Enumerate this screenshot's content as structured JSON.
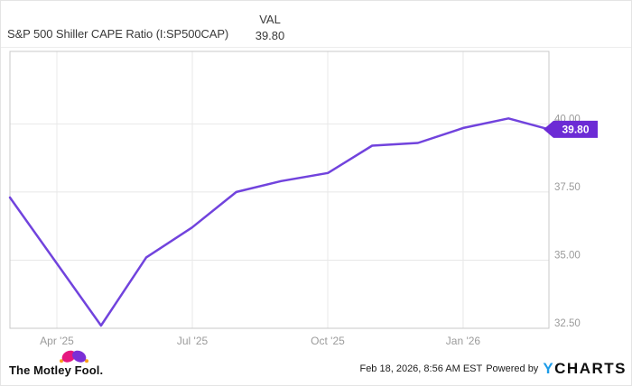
{
  "header": {
    "title": "S&P 500 Shiller CAPE Ratio (I:SP500CAP)",
    "val_label": "VAL",
    "val_value": "39.80"
  },
  "chart_data": {
    "type": "line",
    "title": "S&P 500 Shiller CAPE Ratio (I:SP500CAP)",
    "series": [
      {
        "name": "S&P 500 Shiller CAPE Ratio",
        "color": "#7143dd",
        "points": [
          {
            "date": "Mar '25",
            "value": 37.3,
            "x": 0
          },
          {
            "date": "May '25",
            "value": 32.6,
            "x": 0.169
          },
          {
            "date": "Jun '25",
            "value": 35.1,
            "x": 0.253
          },
          {
            "date": "Jul '25",
            "value": 36.2,
            "x": 0.338
          },
          {
            "date": "Aug '25",
            "value": 37.5,
            "x": 0.42
          },
          {
            "date": "Sep '25",
            "value": 37.9,
            "x": 0.503
          },
          {
            "date": "Oct '25",
            "value": 38.2,
            "x": 0.59
          },
          {
            "date": "Nov '25",
            "value": 39.2,
            "x": 0.672
          },
          {
            "date": "Dec '25",
            "value": 39.3,
            "x": 0.757
          },
          {
            "date": "Jan '26",
            "value": 39.85,
            "x": 0.841
          },
          {
            "date": "Feb '26",
            "value": 40.2,
            "x": 0.925
          },
          {
            "date": "Feb 18 '26",
            "value": 39.8,
            "x": 1
          }
        ]
      }
    ],
    "x_ticks": [
      {
        "label": "Apr '25",
        "x": 0.0871
      },
      {
        "label": "Jul '25",
        "x": 0.3384
      },
      {
        "label": "Oct '25",
        "x": 0.5896
      },
      {
        "label": "Jan '26",
        "x": 0.8408
      }
    ],
    "y_ticks": [
      {
        "label": "40.00",
        "value": 40.0
      },
      {
        "label": "37.50",
        "value": 37.5
      },
      {
        "label": "35.00",
        "value": 35.0
      },
      {
        "label": "32.50",
        "value": 32.5
      }
    ],
    "ylim": [
      32.5,
      42.66
    ],
    "grid": true,
    "legend": "none",
    "end_badge": {
      "text": "39.80",
      "color": "#6c2bd5",
      "text_color": "#ffffff"
    },
    "axis_label_color": "#9b9b9b",
    "grid_color": "#e8e8e8",
    "frame_color": "#c9c9c9"
  },
  "footer": {
    "brand": "The Motley Fool.",
    "timestamp": "Feb 18, 2026, 8:56 AM EST",
    "powered_by": "Powered by",
    "ycharts_y": "Y",
    "ycharts_rest": "CHARTS"
  },
  "colors": {
    "line_purple": "#7143dd",
    "badge_purple": "#6c2bd5",
    "ycharts_blue": "#1d9ce8",
    "motley_pink": "#e5177e",
    "motley_purple": "#7b2fd6",
    "motley_dot": "#f9a11b"
  }
}
